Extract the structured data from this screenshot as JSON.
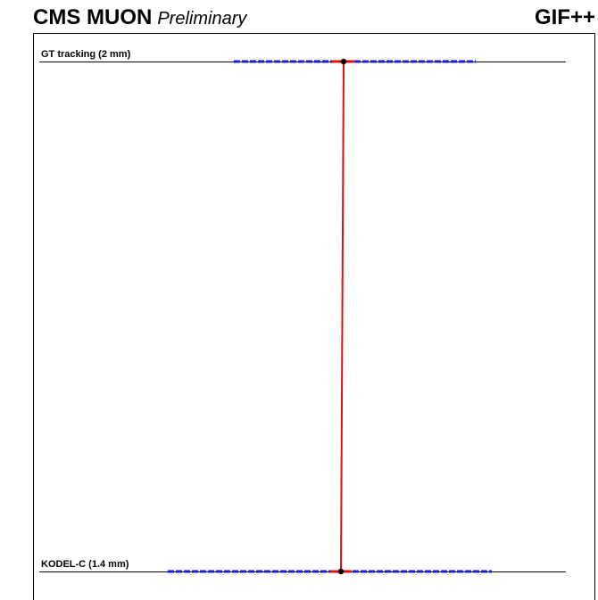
{
  "header": {
    "experiment": "CMS MUON",
    "status": "Preliminary",
    "facility": "GIF++"
  },
  "layers": [
    {
      "label": "GT tracking (2 mm)"
    },
    {
      "label": "KODEL-C (1.4 mm)"
    }
  ]
}
